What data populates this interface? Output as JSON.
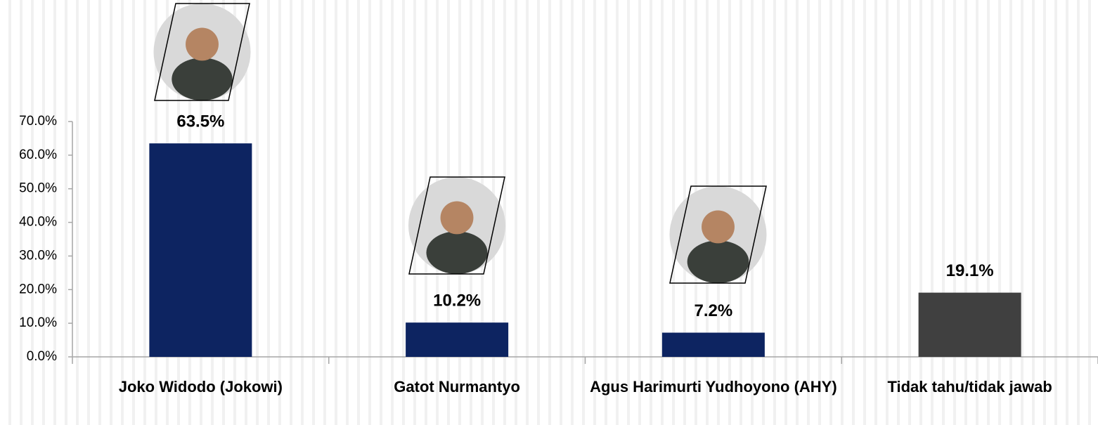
{
  "chart_data": {
    "type": "bar",
    "categories": [
      "Joko Widodo (Jokowi)",
      "Gatot Nurmantyo",
      "Agus Harimurti Yudhoyono (AHY)",
      "Tidak tahu/tidak jawab"
    ],
    "values": [
      63.5,
      10.2,
      7.2,
      19.1
    ],
    "value_labels": [
      "63.5%",
      "10.2%",
      "7.2%",
      "19.1%"
    ],
    "colors": [
      "#0d2461",
      "#0d2461",
      "#0d2461",
      "#404040"
    ],
    "ylim": [
      0,
      70
    ],
    "yticks": [
      {
        "value": 0,
        "label": "0.0%"
      },
      {
        "value": 10,
        "label": "10.0%"
      },
      {
        "value": 20,
        "label": "20.0%"
      },
      {
        "value": 30,
        "label": "30.0%"
      },
      {
        "value": 40,
        "label": "40.0%"
      },
      {
        "value": 50,
        "label": "50.0%"
      },
      {
        "value": 60,
        "label": "60.0%"
      },
      {
        "value": 70,
        "label": "70.0%"
      }
    ],
    "grid": false
  }
}
